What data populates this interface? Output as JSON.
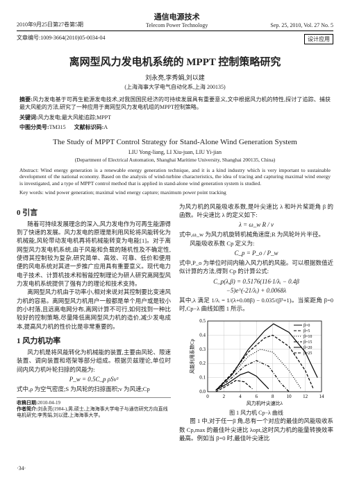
{
  "header": {
    "date_left": "2010年9月25日第27卷第5期",
    "journal_cn": "通信电源技术",
    "journal_en": "Telecom Power Technology",
    "date_right": "Sep. 25, 2010, Vol. 27 No. 5",
    "article_no_label": "文章编号:",
    "article_no": "1009-3664(2010)05-0034-04",
    "section_tag": "设计应用"
  },
  "title_cn": "离网型风力发电机系统的 MPPT 控制策略研究",
  "authors_cn": "刘永亮,李秀娟,刘以建",
  "affil_cn": "(上海海事大学电气自动化系,上海 200135)",
  "abstract_cn_label": "摘要:",
  "abstract_cn": "风力发电基于可再生能源发电技术,对我国国民经济的可持续发展具有重要意义,文中根据风力机的特性,探讨了追踪、捕获最大风能的方法,研究了一种应用于离网型风力发电机组的MPPT控制策略。",
  "keywords_cn_label": "关键词:",
  "keywords_cn": "风力发电;最大风能追踪;MPPT",
  "clc_label": "中图分类号:",
  "clc": "TM315",
  "doc_code_label": "文献标识码:",
  "doc_code": "A",
  "title_en": "The Study of MPPT Control Strategy for Stand-Alone Wind Generation System",
  "authors_en": "LIU Yong-liang, LI Xiu-juan, LIU Yi-jian",
  "affil_en": "(Department of Electrical Automation, Shanghai Maritime University, Shanghai 200135, China)",
  "abstract_en_label": "Abstract:",
  "abstract_en": "Wind energy generation is a renewable energy generation technique, and it is a kind industry which is very important to sustainable development of the national economy. Based on the analysis of wind-turbine characteristics, the idea of tracing and capturing maximal wind energy is investigated, and a type of MPPT control method that is applied in stand-alone wind generation system is studied.",
  "keywords_en_label": "Key words:",
  "keywords_en": "wind power generation; maximal wind energy capture; maximum power point tracking",
  "sec0_h": "0 引言",
  "sec0_p1": "随着可持续发展理念的深入,风力发电作为可再生能源得到了快速的发展。风力发电的原理是利用风轮将风能转化为机械能,风轮带动发电机再将机械能转变为电能[1]。对于离网型风力发电机系统,由于风能和负载的随机性及不确定性,使得其控制较为复杂,研究简单、高效、可靠、低价和便用便的风电系统对其进一步推广应用具有重要意义。现代电力电子技术、计算机技术和智能控制理论为研人研究离网型风力发电机系统提供了强有力的理论和技术支持。",
  "sec0_p2": "离网型风力机由于功率小,相对来说对其控制要比变速风力机的容易。离网型风力机用户一般都是单个用户或是较小的小村落,且远离电网分布,离网计算不可行,如何找到一种比较好的控制策略,尽量降低离网型风力机的造价,减少发电成本,提高风力机的性价比是非常重要的。",
  "sec1_h": "1 风力机功率",
  "sec1_p1": "风力机是将风能转化为机械能的装置,主要由风轮、限速装置、调向装置和塔架等部分组成。根据贝兹理论,单位时间内风力机叶轮扫掠的风能为:",
  "eq1": "P_w = 0.5C_p ρSv³",
  "sec1_p2": "式中,ρ 为空气密度;S 为风轮的扫掠面积;v 为风速;Cp",
  "col2_p1": "为风力机的风能吸收系数,是叶尖速比 λ 和叶片桨距角 β 的函数。叶尖速比 λ 的定义如下:",
  "eq2": "λ = ω_w R / v",
  "col2_p2": "式中,ω_w 为风力机旋转机械角速度;R 为风轮叶片半径。",
  "col2_p3": "风能吸收系数 Cp 定义为:",
  "eq3": "C_p = P_o / P_w",
  "col2_p4": "式中,P_o 为单位时间内输入风力机的风能。可以根据数值近似计算的方法,得到 Cp 的计算公式:",
  "eq4": "C_p(λ,β) = 0.5176(116·1/λᵢ − 0.4β",
  "eq5": "−5)e^(-21/λᵢ) + 0.0068λ",
  "eq6": "其中,λ 满足 1/λᵢ = 1/(λ+0.08β) − 0.035/(β³+1)。当桨距角 β=0 时,Cp−λ 曲线如图 1 所示。",
  "chart": {
    "type": "line",
    "title": "图 1  风力机 Cp−λ 曲线",
    "xlabel": "风力机叶尖速比λ",
    "ylabel": "风能利用系数Cp",
    "xlim": [
      0,
      14
    ],
    "ylim": [
      0,
      0.5
    ],
    "xtick_step": 2,
    "ytick_step": 0.1,
    "background_color": "#ffffff",
    "grid_color": "#bbbbbb",
    "axis_color": "#000000",
    "line_width": 1.2,
    "series": [
      {
        "label": "β=0",
        "color": "#000000",
        "style": "solid",
        "points": [
          [
            1,
            0.01
          ],
          [
            3,
            0.12
          ],
          [
            5,
            0.3
          ],
          [
            7,
            0.43
          ],
          [
            8.1,
            0.48
          ],
          [
            10,
            0.42
          ],
          [
            12,
            0.28
          ],
          [
            13.5,
            0.1
          ]
        ]
      },
      {
        "label": "β=5",
        "color": "#000000",
        "style": "dash",
        "points": [
          [
            1,
            0.01
          ],
          [
            3,
            0.13
          ],
          [
            5,
            0.28
          ],
          [
            7,
            0.38
          ],
          [
            8,
            0.4
          ],
          [
            10,
            0.32
          ],
          [
            12,
            0.15
          ],
          [
            13,
            0.02
          ]
        ]
      },
      {
        "label": "β=10",
        "color": "#000000",
        "style": "dot",
        "points": [
          [
            1,
            0.01
          ],
          [
            3,
            0.12
          ],
          [
            5,
            0.25
          ],
          [
            6.5,
            0.3
          ],
          [
            8,
            0.28
          ],
          [
            10,
            0.15
          ],
          [
            11.5,
            0.02
          ]
        ]
      },
      {
        "label": "β=15",
        "color": "#000000",
        "style": "dashdot",
        "points": [
          [
            1,
            0.01
          ],
          [
            3,
            0.1
          ],
          [
            4.5,
            0.18
          ],
          [
            6,
            0.22
          ],
          [
            7.5,
            0.18
          ],
          [
            9,
            0.06
          ],
          [
            10,
            0.0
          ]
        ]
      },
      {
        "label": "β=20",
        "color": "#000000",
        "style": "solid",
        "points": [
          [
            1,
            0.01
          ],
          [
            2.5,
            0.06
          ],
          [
            4,
            0.12
          ],
          [
            5,
            0.14
          ],
          [
            6,
            0.11
          ],
          [
            7.5,
            0.02
          ]
        ]
      },
      {
        "label": "β=25",
        "color": "#000000",
        "style": "dash",
        "points": [
          [
            1,
            0.0
          ],
          [
            2,
            0.03
          ],
          [
            3.5,
            0.08
          ],
          [
            4.5,
            0.07
          ],
          [
            5.5,
            0.02
          ]
        ]
      }
    ],
    "fontsize_axis": 7,
    "fontsize_legend": 6
  },
  "col2_p5": "图 1 中,对于任一β 角,总有一个对应的最佳的风能吸收系数 Cp,max 的最佳叶尖速比 λopt,这时风力机的能量转换效率最高。例如当 β=0 时,最佳叶尖速比",
  "footer_date_label": "收稿日期:",
  "footer_date": "2010-04-19",
  "footer_author_label": "作者简介:",
  "footer_author": "刘永亮(1984-),男,硕士,上海海事大学电子与通信研究方向直线电机研究;李秀娟,刘以建,上海海事大学。",
  "page_num": "·34·"
}
